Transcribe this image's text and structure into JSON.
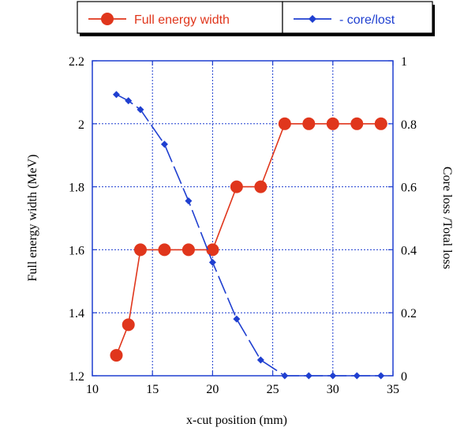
{
  "chart_data": {
    "type": "line",
    "xlabel": "x-cut position (mm)",
    "ylabel_left": "Full energy width (MeV)",
    "ylabel_right": "Core loss /Total loss",
    "xlim": [
      10,
      35
    ],
    "ylim_left": [
      1.2,
      2.2
    ],
    "ylim_right": [
      0,
      1
    ],
    "x_ticks": [
      "10",
      "15",
      "20",
      "25",
      "30",
      "35"
    ],
    "y_left_ticks": [
      "1.2",
      "1.4",
      "1.6",
      "1.8",
      "2",
      "2.2"
    ],
    "y_right_ticks": [
      "0",
      "0.2",
      "0.4",
      "0.6",
      "0.8",
      "1"
    ],
    "grid": true,
    "legend_position": "top",
    "series": [
      {
        "name": "Full energy width",
        "axis": "left",
        "color": "#e0361c",
        "marker": "circle",
        "line_style": "solid",
        "x": [
          12,
          13,
          14,
          16,
          18,
          20,
          22,
          24,
          26,
          28,
          30,
          32,
          34
        ],
        "y": [
          1.265,
          1.362,
          1.6,
          1.6,
          1.6,
          1.6,
          1.8,
          1.8,
          2.0,
          2.0,
          2.0,
          2.0,
          2.0
        ]
      },
      {
        "name": "- core/lost",
        "axis": "right",
        "color": "#1f3fd0",
        "marker": "diamond",
        "line_style": "dashed",
        "x": [
          12,
          13,
          14,
          16,
          18,
          20,
          22,
          24,
          26,
          28,
          30,
          32,
          34
        ],
        "y": [
          0.893,
          0.873,
          0.845,
          0.735,
          0.555,
          0.36,
          0.18,
          0.05,
          0.0,
          0.0,
          0.0,
          0.0,
          0.0
        ]
      }
    ]
  }
}
